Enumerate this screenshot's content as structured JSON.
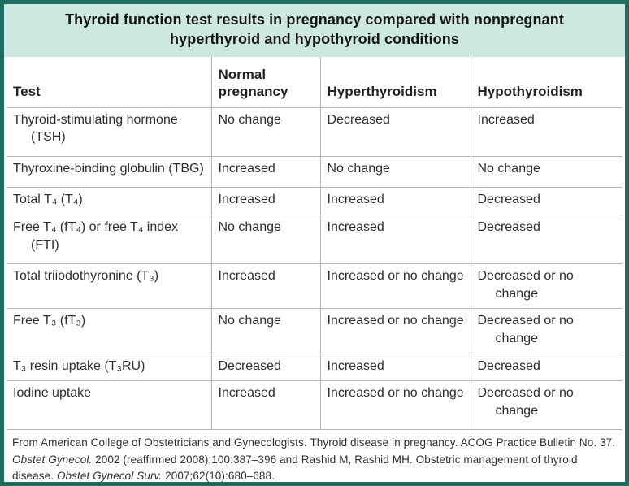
{
  "title": "Thyroid function test results in pregnancy compared with nonpregnant hyperthyroid and hypothyroid conditions",
  "colors": {
    "frame_border": "#1e6e62",
    "title_band_bg": "#cde7e1",
    "grid_line": "#b4b4b4",
    "text": "#2e2e2e"
  },
  "table": {
    "columns": {
      "test": "Test",
      "normal": "Normal pregnancy",
      "hyper": "Hyperthyroidism",
      "hypo": "Hypothyroidism"
    },
    "rows": [
      {
        "test": "Thyroid-stimulating hormone (TSH)",
        "normal": "No change",
        "hyper": "Decreased",
        "hypo": "Increased"
      },
      {
        "test": "Thyroxine-binding globulin (TBG)",
        "normal": "Increased",
        "hyper": "No change",
        "hypo": "No change"
      },
      {
        "test": "Total T₄ (T₄)",
        "normal": "Increased",
        "hyper": "Increased",
        "hypo": "Decreased"
      },
      {
        "test": "Free T₄ (fT₄) or free T₄ index (FTI)",
        "normal": "No change",
        "hyper": "Increased",
        "hypo": "Decreased"
      },
      {
        "test": "Total triiodothyronine (T₃)",
        "normal": "Increased",
        "hyper": "Increased or no change",
        "hypo": "Decreased or no change"
      },
      {
        "test": "Free T₃ (fT₃)",
        "normal": "No change",
        "hyper": "Increased or no change",
        "hypo": "Decreased or no change"
      },
      {
        "test": "T₃ resin uptake (T₃RU)",
        "normal": "Decreased",
        "hyper": "Increased",
        "hypo": "Decreased"
      },
      {
        "test": "Iodine uptake",
        "normal": "Increased",
        "hyper": "Increased or no change",
        "hypo": "Decreased or no change"
      }
    ]
  },
  "footer": {
    "text_1": "From American College of Obstetricians and Gynecologists. Thyroid disease in pregnancy. ACOG Practice Bulletin No. 37. ",
    "cite_1": "Obstet Gynecol.",
    "text_2": " 2002 (reaffirmed 2008);100:387–396 and Rashid M, Rashid MH. Obstetric management of thyroid disease. ",
    "cite_2": "Obstet Gynecol Surv.",
    "text_3": " 2007;62(10):680–688."
  }
}
